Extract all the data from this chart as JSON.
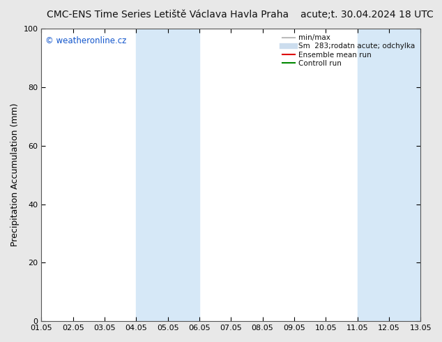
{
  "title_left": "CMC-ENS Time Series Letiště Václava Havla Praha",
  "title_right": "acute;t. 30.04.2024 18 UTC",
  "ylabel": "Precipitation Accumulation (mm)",
  "watermark": "© weatheronline.cz",
  "watermark_color": "#1155cc",
  "xlim": [
    0,
    12
  ],
  "ylim": [
    0,
    100
  ],
  "xtick_labels": [
    "01.05",
    "02.05",
    "03.05",
    "04.05",
    "05.05",
    "06.05",
    "07.05",
    "08.05",
    "09.05",
    "10.05",
    "11.05",
    "12.05",
    "13.05"
  ],
  "xtick_positions": [
    0,
    1,
    2,
    3,
    4,
    5,
    6,
    7,
    8,
    9,
    10,
    11,
    12
  ],
  "ytick_positions": [
    0,
    20,
    40,
    60,
    80,
    100
  ],
  "shaded_regions": [
    {
      "xmin": 3,
      "xmax": 5,
      "color": "#d6e8f7"
    },
    {
      "xmin": 10,
      "xmax": 12,
      "color": "#d6e8f7"
    }
  ],
  "legend_entries": [
    {
      "label": "min/max",
      "color": "#bbbbbb",
      "lw": 1.5
    },
    {
      "label": "Sm  283;rodatn acute; odchylka",
      "color": "#ccddee",
      "lw": 6
    },
    {
      "label": "Ensemble mean run",
      "color": "#dd0000",
      "lw": 1.5
    },
    {
      "label": "Controll run",
      "color": "#008800",
      "lw": 1.5
    }
  ],
  "bg_color": "#e8e8e8",
  "plot_bg_color": "#ffffff",
  "border_color": "#555555",
  "title_fontsize": 10,
  "axis_label_fontsize": 9,
  "tick_fontsize": 8,
  "legend_fontsize": 7.5
}
